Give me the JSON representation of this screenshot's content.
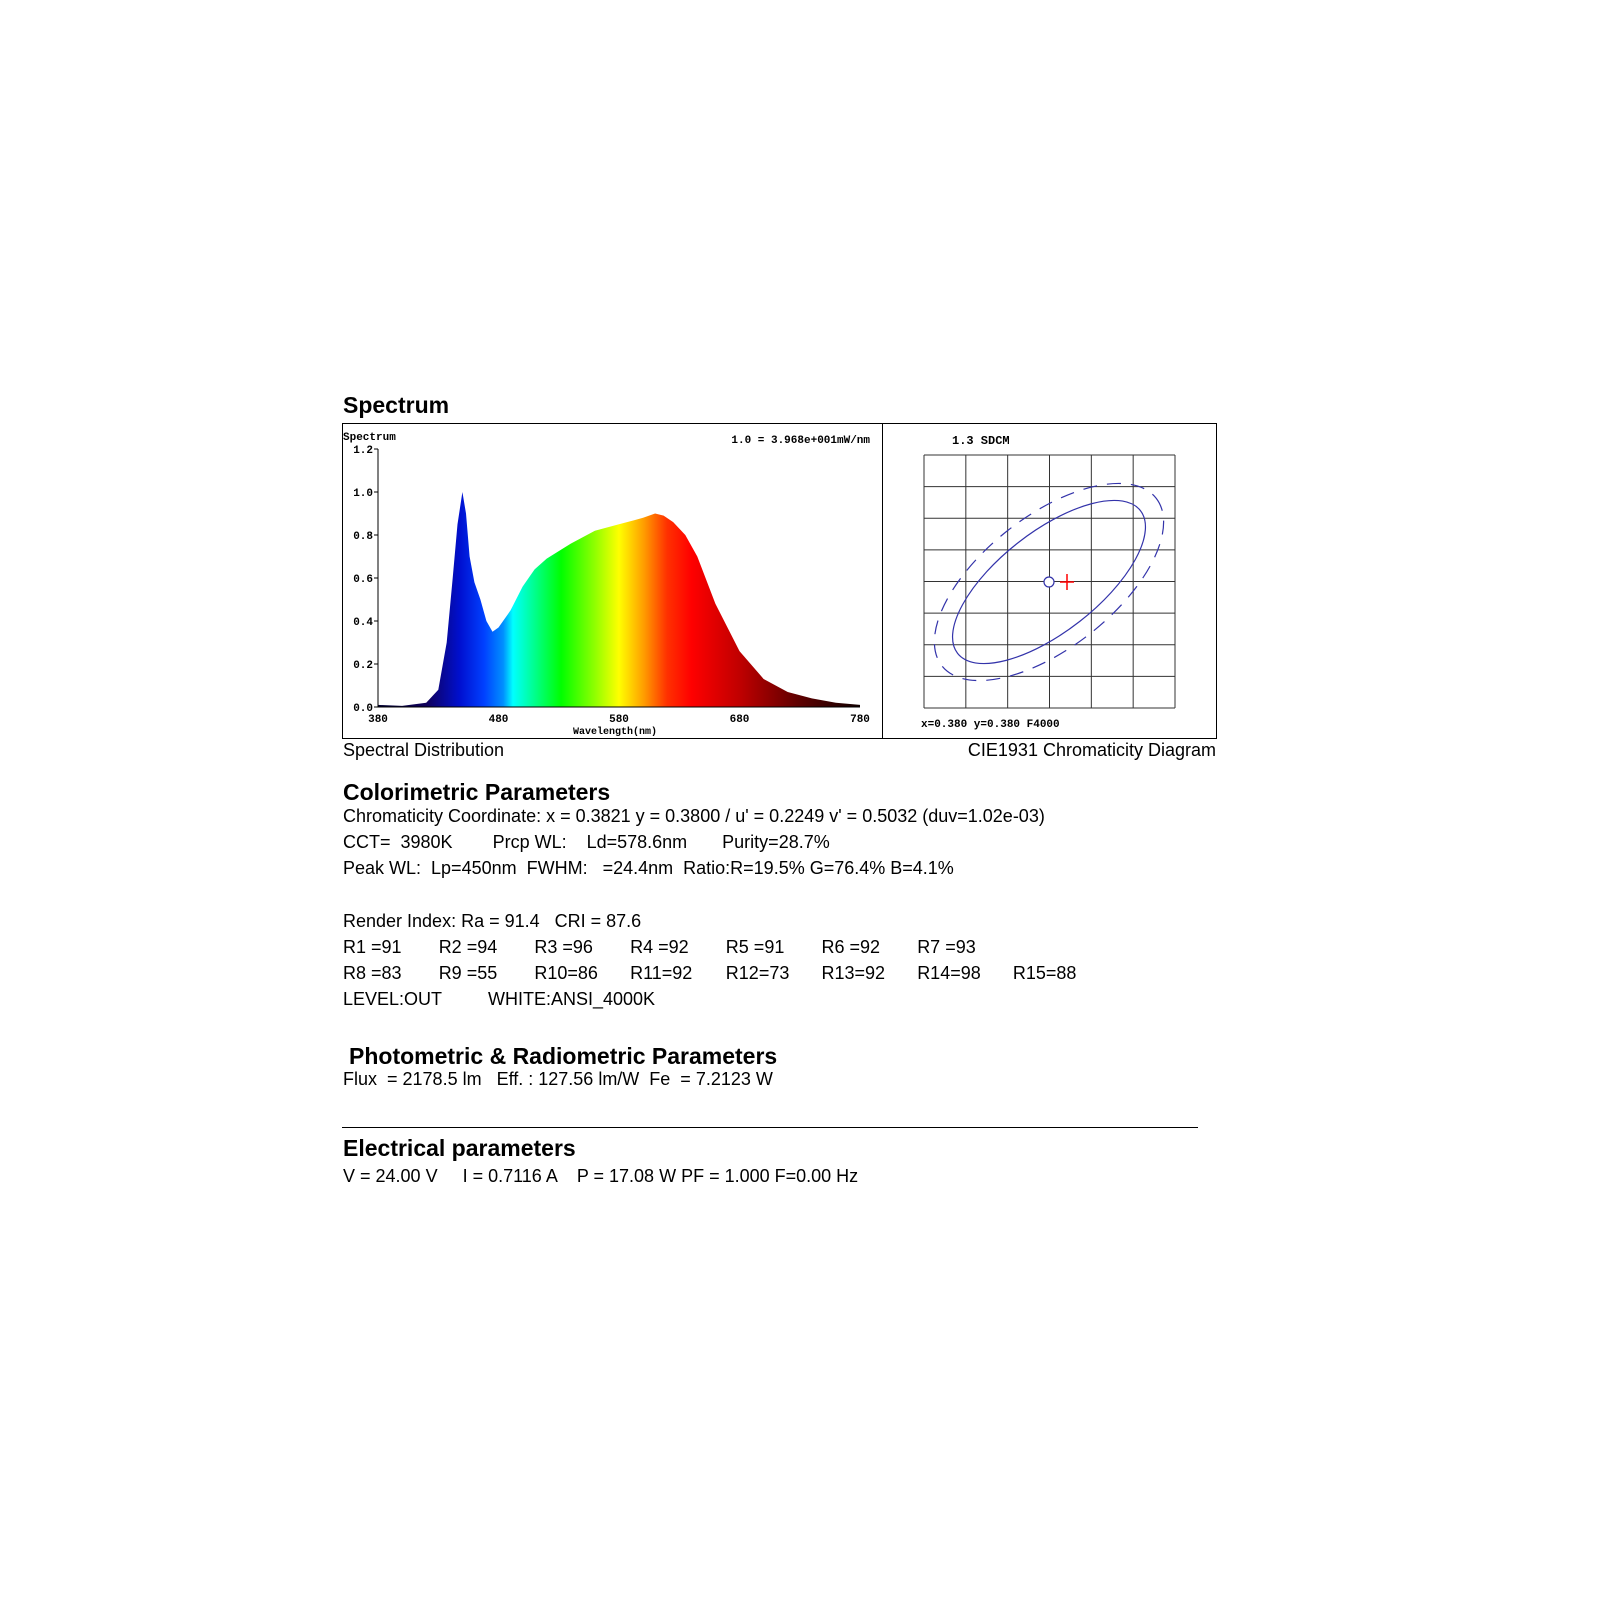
{
  "spectrum_section": {
    "title": "Spectrum",
    "caption_left": "Spectral Distribution",
    "caption_right": "CIE1931 Chromaticity Diagram"
  },
  "chart_data": [
    {
      "type": "area",
      "title": "Spectrum",
      "note": "1.0 = 3.968e+001mW/nm",
      "xlabel": "Wavelength(nm)",
      "ylabel": "",
      "xlim": [
        380,
        780
      ],
      "ylim": [
        0,
        1.2
      ],
      "xticks": [
        "380",
        "480",
        "580",
        "680",
        "780"
      ],
      "yticks": [
        "0.0",
        "0.2",
        "0.4",
        "0.6",
        "0.8",
        "1.0",
        "1.2"
      ],
      "x": [
        380,
        400,
        420,
        430,
        437,
        442,
        446,
        450,
        453,
        456,
        460,
        465,
        470,
        475,
        480,
        490,
        500,
        510,
        520,
        540,
        560,
        580,
        600,
        610,
        617,
        625,
        635,
        645,
        660,
        680,
        700,
        720,
        740,
        760,
        780
      ],
      "y": [
        0.01,
        0.005,
        0.02,
        0.08,
        0.3,
        0.6,
        0.85,
        1.0,
        0.9,
        0.7,
        0.58,
        0.5,
        0.4,
        0.35,
        0.37,
        0.45,
        0.56,
        0.64,
        0.69,
        0.76,
        0.82,
        0.85,
        0.88,
        0.9,
        0.89,
        0.86,
        0.8,
        0.7,
        0.48,
        0.26,
        0.13,
        0.07,
        0.04,
        0.02,
        0.01
      ]
    },
    {
      "type": "scatter",
      "title": "1.3 SDCM",
      "footer": "x=0.380 y=0.380 F4000",
      "grid": true,
      "reference_color": "#ff0000",
      "ellipse_color": "#3333aa"
    }
  ],
  "colorimetric": {
    "title": "Colorimetric Parameters",
    "lines": [
      "Chromaticity Coordinate: x = 0.3821 y = 0.3800 / u' = 0.2249 v' = 0.5032 (duv=1.02e-03)",
      "CCT=  3980K        Prcp WL:    Ld=578.6nm       Purity=28.7%",
      "Peak WL:  Lp=450nm  FWHM:   =24.4nm  Ratio:R=19.5% G=76.4% B=4.1%"
    ],
    "render": "Render Index: Ra = 91.4   CRI = 87.6",
    "r_row1": [
      "R1 =91",
      "R2 =94",
      "R3 =96",
      "R4 =92",
      "R5 =91",
      "R6 =92",
      "R7 =93"
    ],
    "r_row2": [
      "R8 =83",
      "R9 =55",
      "R10=86",
      "R11=92",
      "R12=73",
      "R13=92",
      "R14=98",
      "R15=88"
    ],
    "level": "LEVEL:OUT",
    "white": "WHITE:ANSI_4000K"
  },
  "photometric": {
    "title": "Photometric & Radiometric Parameters",
    "line": "Flux  = 2178.5 lm   Eff. : 127.56 lm/W  Fe  = 7.2123 W"
  },
  "electrical": {
    "title": "Electrical parameters",
    "line": "V = 24.00 V     I = 0.7116 A    P = 17.08 W PF = 1.000 F=0.00 Hz"
  }
}
